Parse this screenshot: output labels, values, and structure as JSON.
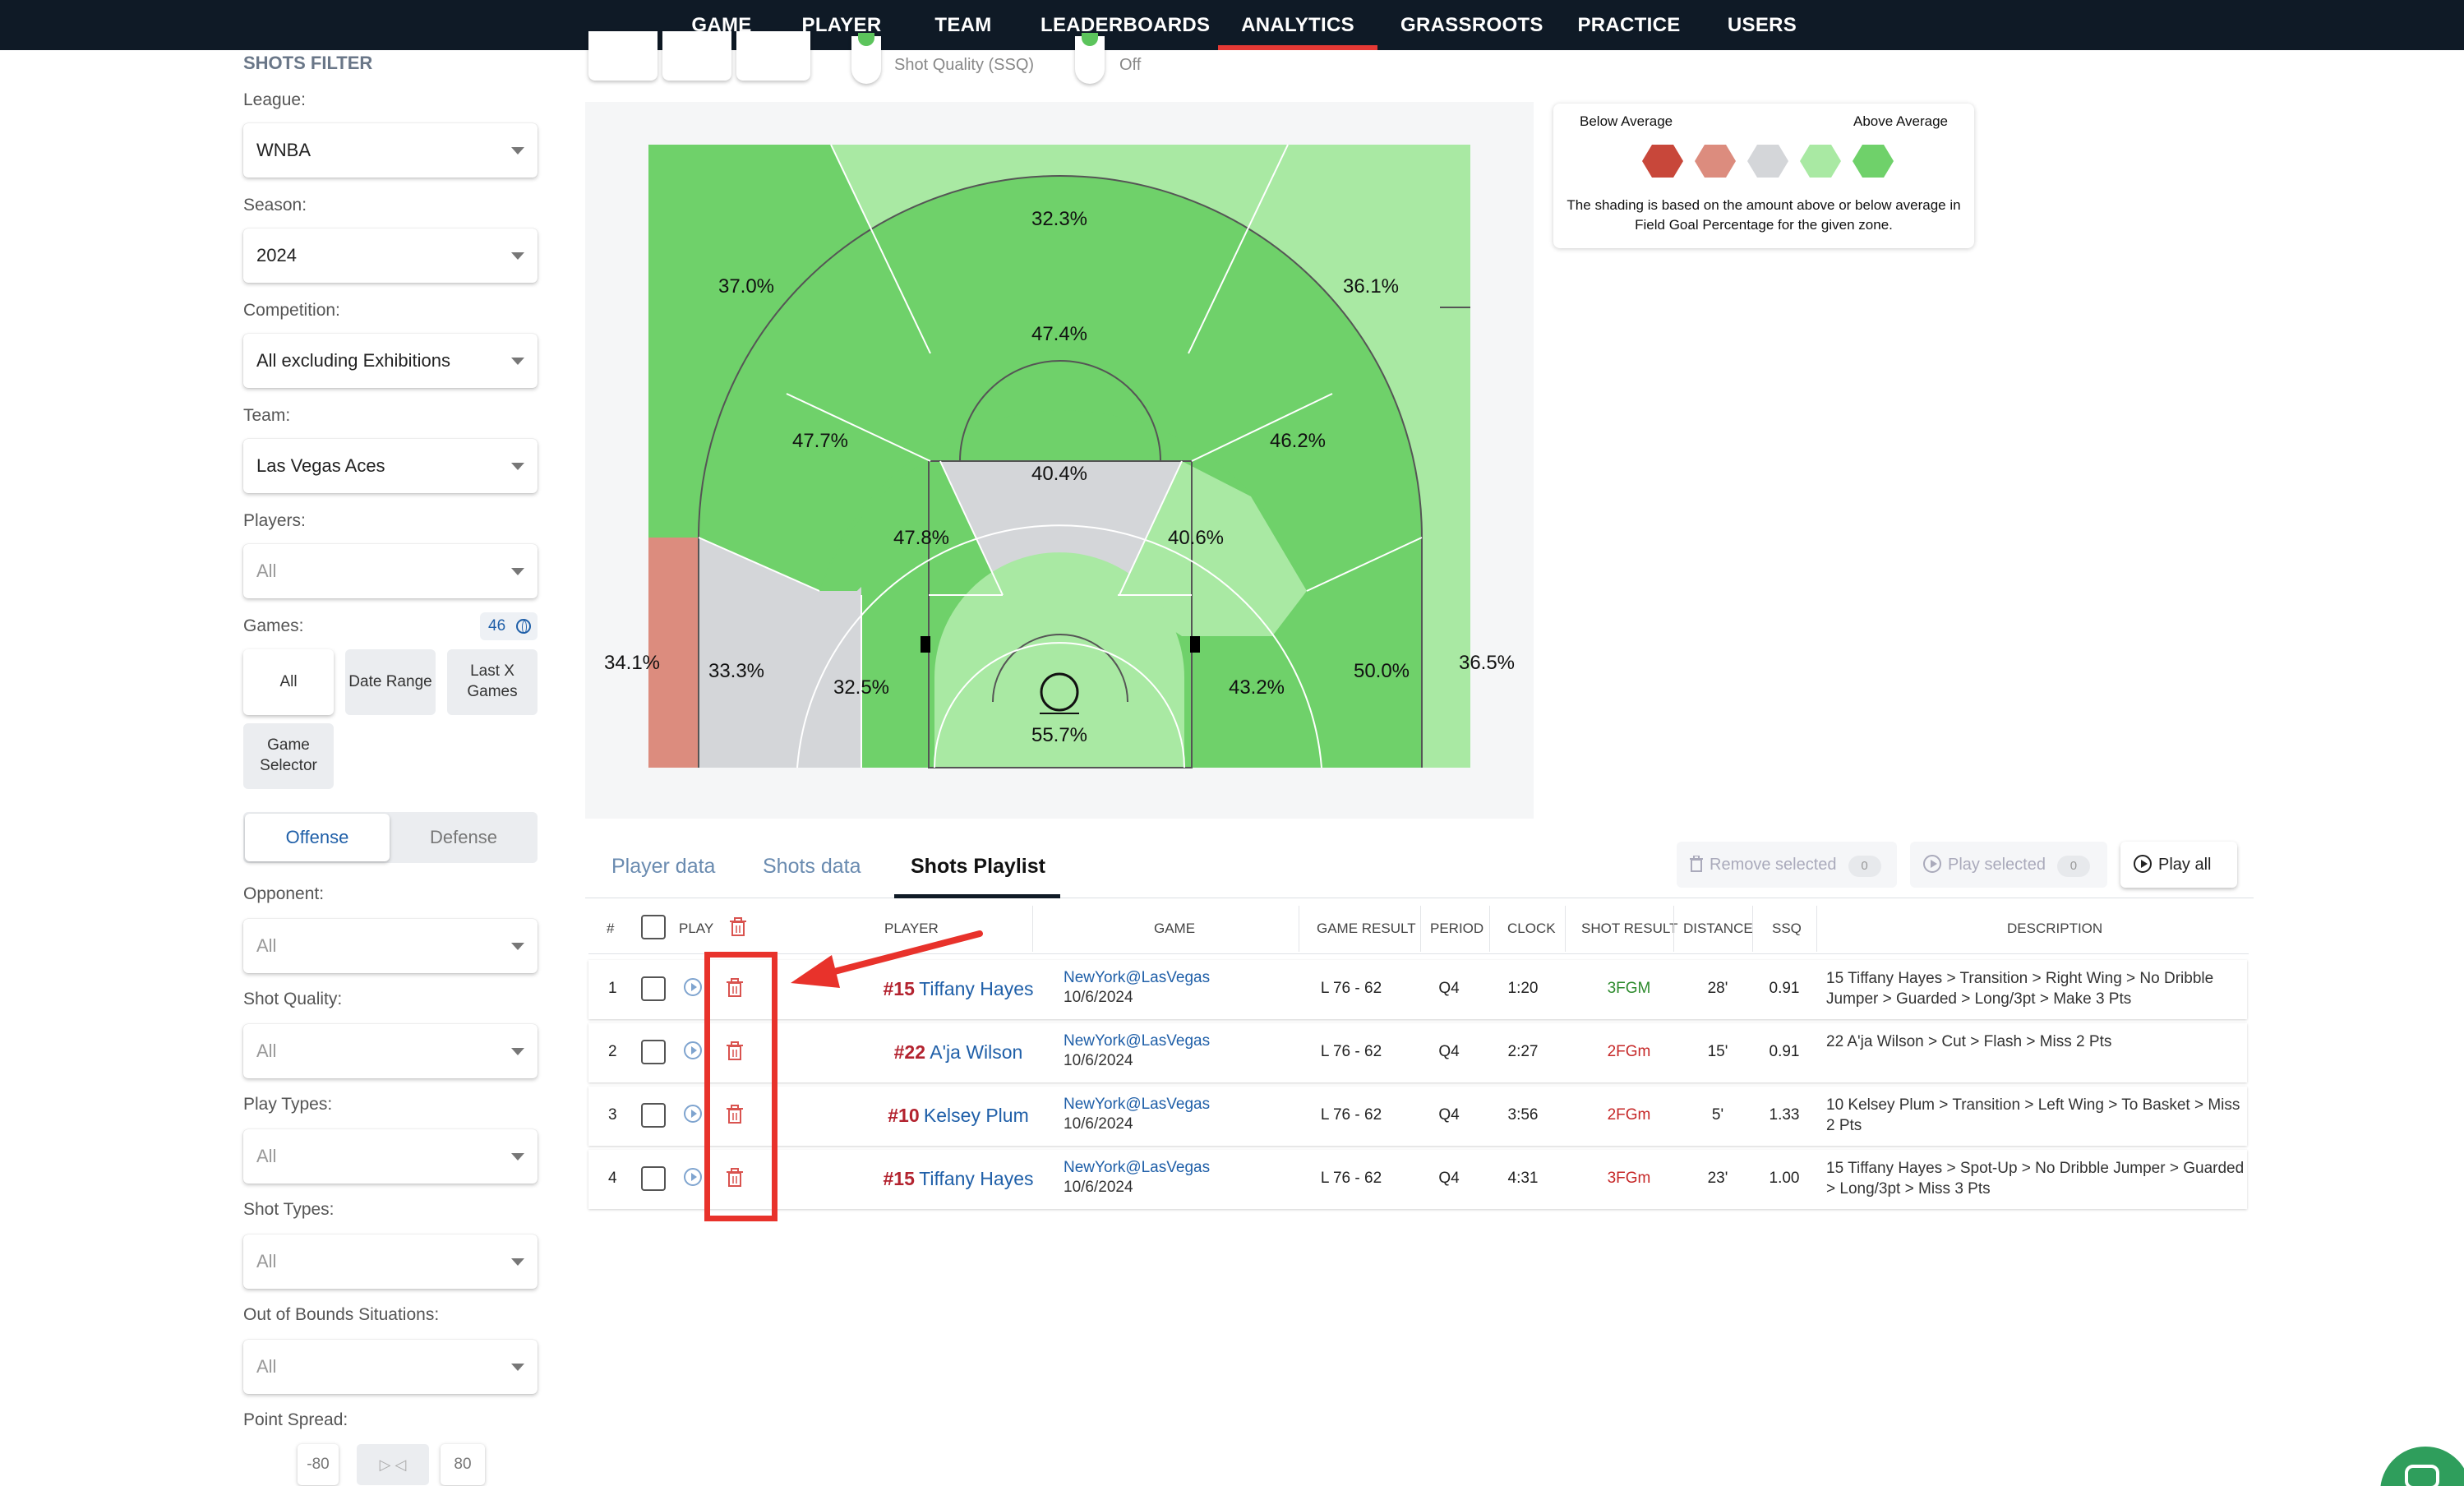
{
  "nav": {
    "items": [
      "GAME",
      "PLAYER",
      "TEAM",
      "LEADERBOARDS",
      "ANALYTICS",
      "GRASSROOTS",
      "PRACTICE",
      "USERS"
    ],
    "active": "ANALYTICS"
  },
  "filter": {
    "title": "SHOTS FILTER",
    "league": {
      "label": "League:",
      "value": "WNBA"
    },
    "season": {
      "label": "Season:",
      "value": "2024"
    },
    "competition": {
      "label": "Competition:",
      "value": "All excluding Exhibitions"
    },
    "team": {
      "label": "Team:",
      "value": "Las Vegas Aces"
    },
    "players": {
      "label": "Players:",
      "value": "All"
    },
    "games": {
      "label": "Games:",
      "count": "46",
      "buttons": [
        "All",
        "Date Range",
        "Last X Games",
        "Game Selector"
      ]
    },
    "side": {
      "offense": "Offense",
      "defense": "Defense"
    },
    "opponent": {
      "label": "Opponent:",
      "value": "All"
    },
    "shot_quality": {
      "label": "Shot Quality:",
      "value": "All"
    },
    "play_types": {
      "label": "Play Types:",
      "value": "All"
    },
    "shot_types": {
      "label": "Shot Types:",
      "value": "All"
    },
    "out_of_bounds": {
      "label": "Out of Bounds Situations:",
      "value": "All"
    },
    "point_spread": {
      "label": "Point Spread:",
      "min": "-80",
      "max": "80"
    }
  },
  "toolbar": {
    "ssq_label": "Shot Quality (SSQ)",
    "off_label": "Off"
  },
  "court": {
    "zones": {
      "corner3_left": "34.1%",
      "wing3_left": "37.0%",
      "top3": "32.3%",
      "wing3_right": "36.1%",
      "corner3_right": "36.5%",
      "long_mid_left": "33.3%",
      "mid_wing_left": "47.7%",
      "top_mid": "47.4%",
      "mid_wing_right": "46.2%",
      "long_mid_right": "50.0%",
      "short_left": "32.5%",
      "elbow_left": "47.8%",
      "ft_line": "40.4%",
      "elbow_right": "40.6%",
      "short_right": "43.2%",
      "restricted": "55.7%"
    },
    "colors": {
      "strong_above": "#6fd16a",
      "above": "#a9e9a3",
      "average": "#d4d6d9",
      "below": "#dc8c7e",
      "strong_below": "#c8473a"
    }
  },
  "legend": {
    "below": "Below Average",
    "above": "Above Average",
    "note": "The shading is based on the amount above or below average in Field Goal Percentage for the given zone."
  },
  "tabs": [
    "Player data",
    "Shots data",
    "Shots Playlist"
  ],
  "actions": {
    "remove_selected": "Remove selected",
    "remove_count": "0",
    "play_selected": "Play selected",
    "play_count": "0",
    "play_all": "Play all"
  },
  "table": {
    "headers": {
      "num": "#",
      "play": "PLAY",
      "player": "PLAYER",
      "game": "GAME",
      "game_result": "GAME RESULT",
      "period": "PERIOD",
      "clock": "CLOCK",
      "shot_result": "SHOT RESULT",
      "distance": "DISTANCE",
      "ssq": "SSQ",
      "description": "DESCRIPTION"
    },
    "rows": [
      {
        "num": "1",
        "jersey": "#15",
        "player": "Tiffany Hayes",
        "game": "NewYork@LasVegas",
        "date": "10/6/2024",
        "result": "L 76 - 62",
        "period": "Q4",
        "clock": "1:20",
        "shot": "3FGM",
        "made": true,
        "distance": "28'",
        "ssq": "0.91",
        "description": "15 Tiffany Hayes > Transition > Right Wing > No Dribble Jumper > Guarded > Long/3pt > Make 3 Pts"
      },
      {
        "num": "2",
        "jersey": "#22",
        "player": "A'ja Wilson",
        "game": "NewYork@LasVegas",
        "date": "10/6/2024",
        "result": "L 76 - 62",
        "period": "Q4",
        "clock": "2:27",
        "shot": "2FGm",
        "made": false,
        "distance": "15'",
        "ssq": "0.91",
        "description": "22 A'ja Wilson > Cut > Flash > Miss 2 Pts"
      },
      {
        "num": "3",
        "jersey": "#10",
        "player": "Kelsey Plum",
        "game": "NewYork@LasVegas",
        "date": "10/6/2024",
        "result": "L 76 - 62",
        "period": "Q4",
        "clock": "3:56",
        "shot": "2FGm",
        "made": false,
        "distance": "5'",
        "ssq": "1.33",
        "description": "10 Kelsey Plum > Transition > Left Wing > To Basket > Miss 2 Pts"
      },
      {
        "num": "4",
        "jersey": "#15",
        "player": "Tiffany Hayes",
        "game": "NewYork@LasVegas",
        "date": "10/6/2024",
        "result": "L 76 - 62",
        "period": "Q4",
        "clock": "4:31",
        "shot": "3FGm",
        "made": false,
        "distance": "23'",
        "ssq": "1.00",
        "description": "15 Tiffany Hayes > Spot-Up > No Dribble Jumper > Guarded > Long/3pt > Miss 3 Pts"
      }
    ]
  }
}
